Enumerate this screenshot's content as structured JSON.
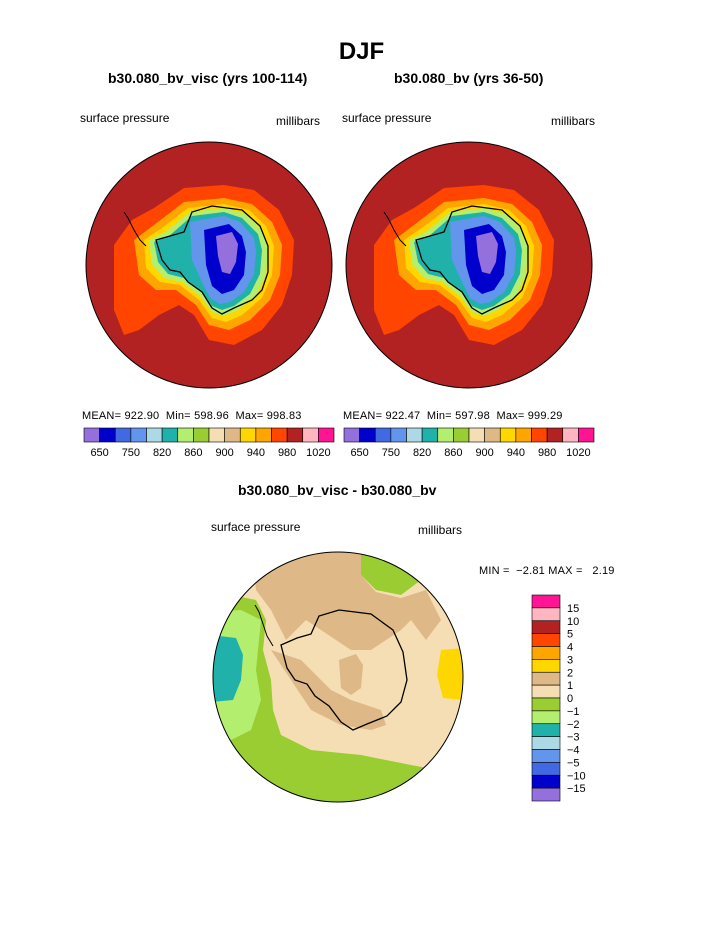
{
  "main_title": "DJF",
  "chart_data": [
    {
      "type": "heatmap",
      "title": "b30.080_bv_visc (yrs 100-114)",
      "left_label": "surface pressure",
      "right_label": "millibars",
      "stats": {
        "mean": "922.90",
        "min": "598.96",
        "max": "998.83"
      },
      "stats_labels": {
        "mean": "MEAN=",
        "min": "Min=",
        "max": "Max="
      },
      "levels": [
        "650",
        "750",
        "820",
        "860",
        "900",
        "940",
        "980",
        "1020"
      ],
      "colors": [
        "#9370db",
        "#0000cd",
        "#4169e1",
        "#6495ed",
        "#add8e6",
        "#20b2aa",
        "#b4ee6e",
        "#9acd32",
        "#f5deb3",
        "#deb887",
        "#ffd700",
        "#ffa500",
        "#ff4500",
        "#b22222",
        "#ffb6c1",
        "#ff1493"
      ]
    },
    {
      "type": "heatmap",
      "title": "b30.080_bv (yrs 36-50)",
      "left_label": "surface pressure",
      "right_label": "millibars",
      "stats": {
        "mean": "922.47",
        "min": "597.98",
        "max": "999.29"
      },
      "stats_labels": {
        "mean": "MEAN=",
        "min": "Min=",
        "max": "Max="
      },
      "levels": [
        "650",
        "750",
        "820",
        "860",
        "900",
        "940",
        "980",
        "1020"
      ],
      "colors": [
        "#9370db",
        "#0000cd",
        "#4169e1",
        "#6495ed",
        "#add8e6",
        "#20b2aa",
        "#b4ee6e",
        "#9acd32",
        "#f5deb3",
        "#deb887",
        "#ffd700",
        "#ffa500",
        "#ff4500",
        "#b22222",
        "#ffb6c1",
        "#ff1493"
      ]
    },
    {
      "type": "heatmap",
      "title": "b30.080_bv_visc - b30.080_bv",
      "left_label": "surface pressure",
      "right_label": "millibars",
      "min_label": "MIN =",
      "min_value": "−2.81",
      "max_label": "MAX =",
      "max_value": "2.19",
      "levels": [
        "15",
        "10",
        "5",
        "4",
        "3",
        "2",
        "1",
        "0",
        "−1",
        "−2",
        "−3",
        "−4",
        "−5",
        "−10",
        "−15"
      ],
      "colors": [
        "#ff1493",
        "#ffb6c1",
        "#b22222",
        "#ff4500",
        "#ffa500",
        "#ffd700",
        "#deb887",
        "#f5deb3",
        "#9acd32",
        "#b4ee6e",
        "#20b2aa",
        "#add8e6",
        "#6495ed",
        "#4169e1",
        "#0000cd",
        "#9370db"
      ]
    }
  ]
}
